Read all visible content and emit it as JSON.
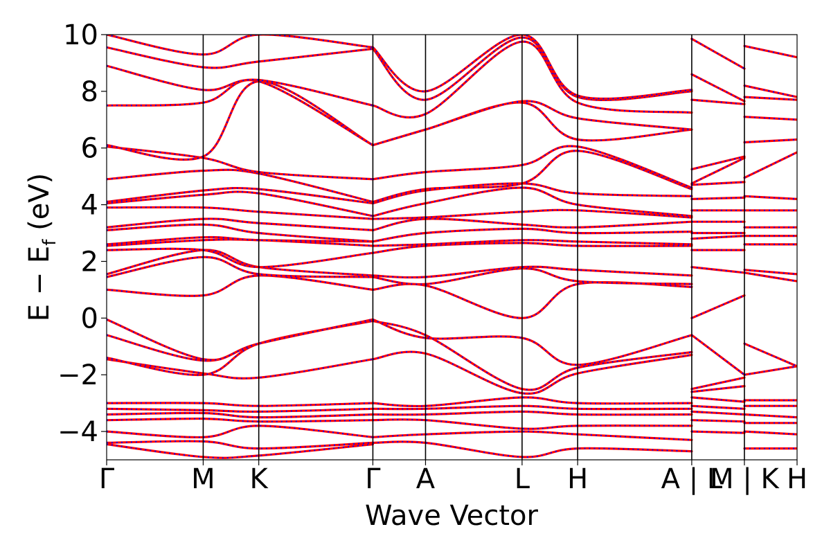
{
  "chart_data": {
    "type": "line",
    "title": "",
    "xlabel": "Wave Vector",
    "ylabel": {
      "main": "E − E",
      "sub": "f",
      "unit": " (eV)"
    },
    "ylim": [
      -5,
      10
    ],
    "yticks": [
      {
        "value": 10,
        "label": "10"
      },
      {
        "value": 8,
        "label": "8"
      },
      {
        "value": 6,
        "label": "6"
      },
      {
        "value": 4,
        "label": "4"
      },
      {
        "value": 2,
        "label": "2"
      },
      {
        "value": 0,
        "label": "0"
      },
      {
        "value": -2,
        "label": "−2"
      },
      {
        "value": -4,
        "label": "−4"
      }
    ],
    "xlim": [
      0,
      2.36
    ],
    "kpoints": [
      {
        "x": 0.0,
        "label": "Γ"
      },
      {
        "x": 0.33,
        "label": "M"
      },
      {
        "x": 0.52,
        "label": "K"
      },
      {
        "x": 0.91,
        "label": "Γ"
      },
      {
        "x": 1.09,
        "label": "A"
      },
      {
        "x": 1.42,
        "label": "L"
      },
      {
        "x": 1.61,
        "label": "H"
      },
      {
        "x": 2.0,
        "label": "A | L"
      },
      {
        "x": 2.18,
        "label": "M | K"
      },
      {
        "x": 2.36,
        "label": "H"
      }
    ],
    "grid": false,
    "legend": "none",
    "series_styles": [
      {
        "color": "#ff0000",
        "style": "solid"
      },
      {
        "color": "#0000ff",
        "style": "dotted"
      }
    ],
    "segments": [
      {
        "x": [
          0,
          0.33,
          0.52,
          0.91
        ],
        "bands": [
          [
            -4.45,
            -4.9,
            -4.85,
            -4.45
          ],
          [
            -4.4,
            -4.35,
            -4.6,
            -4.4
          ],
          [
            -4.0,
            -4.2,
            -3.8,
            -4.2
          ],
          [
            -3.6,
            -3.55,
            -3.65,
            -3.6
          ],
          [
            -3.4,
            -3.35,
            -3.5,
            -3.4
          ],
          [
            -3.2,
            -3.25,
            -3.3,
            -3.2
          ],
          [
            -3.0,
            -3.0,
            -3.1,
            -3.0
          ],
          [
            -1.45,
            -1.95,
            -2.1,
            -1.45
          ],
          [
            -1.4,
            -2.0,
            -0.9,
            -0.1
          ],
          [
            -0.6,
            -1.5,
            -0.9,
            -0.05
          ],
          [
            -0.05,
            -1.45,
            -0.9,
            -0.05
          ],
          [
            1.0,
            0.8,
            1.5,
            1.0
          ],
          [
            1.45,
            2.15,
            1.55,
            1.45
          ],
          [
            1.55,
            2.4,
            1.8,
            1.5
          ],
          [
            2.4,
            2.4,
            1.8,
            2.3
          ],
          [
            2.55,
            2.75,
            2.75,
            2.55
          ],
          [
            2.6,
            2.85,
            2.75,
            2.7
          ],
          [
            3.1,
            3.3,
            3.0,
            2.7
          ],
          [
            3.2,
            3.5,
            3.35,
            3.1
          ],
          [
            3.9,
            3.9,
            3.75,
            3.5
          ],
          [
            4.05,
            4.35,
            4.4,
            3.6
          ],
          [
            4.1,
            4.5,
            4.55,
            4.05
          ],
          [
            4.9,
            5.2,
            5.1,
            4.1
          ],
          [
            6.05,
            5.65,
            5.15,
            4.9
          ],
          [
            6.1,
            5.7,
            8.35,
            6.1
          ],
          [
            7.5,
            7.6,
            8.35,
            6.1
          ],
          [
            8.9,
            8.05,
            8.4,
            7.5
          ],
          [
            9.55,
            8.85,
            9.05,
            9.5
          ],
          [
            10.0,
            9.3,
            10.0,
            9.55
          ]
        ]
      },
      {
        "x": [
          0.91,
          1.09,
          1.42,
          1.61,
          2.0
        ],
        "bands": [
          [
            -4.4,
            -4.4,
            -4.9,
            -4.6,
            -4.7
          ],
          [
            -4.2,
            -4.1,
            -4.0,
            -4.1,
            -4.3
          ],
          [
            -3.6,
            -3.6,
            -3.9,
            -3.8,
            -3.8
          ],
          [
            -3.4,
            -3.4,
            -3.3,
            -3.4,
            -3.4
          ],
          [
            -3.2,
            -3.2,
            -3.1,
            -3.2,
            -3.2
          ],
          [
            -3.0,
            -3.1,
            -2.8,
            -3.0,
            -3.0
          ],
          [
            -1.45,
            -1.25,
            -2.65,
            -1.95,
            -1.3
          ],
          [
            -0.1,
            -0.6,
            -2.5,
            -1.75,
            -1.2
          ],
          [
            -0.05,
            -0.7,
            -0.7,
            -1.65,
            -0.6
          ],
          [
            1.0,
            1.15,
            0.0,
            1.2,
            1.1
          ],
          [
            1.45,
            1.2,
            1.75,
            1.3,
            1.2
          ],
          [
            1.5,
            1.45,
            1.8,
            1.7,
            1.5
          ],
          [
            2.3,
            2.55,
            2.65,
            2.55,
            2.55
          ],
          [
            2.55,
            2.6,
            2.75,
            2.7,
            2.6
          ],
          [
            2.7,
            3.0,
            3.15,
            3.0,
            3.05
          ],
          [
            3.1,
            3.5,
            3.3,
            3.2,
            3.4
          ],
          [
            3.5,
            3.55,
            3.75,
            3.8,
            3.55
          ],
          [
            3.6,
            4.05,
            4.6,
            4.0,
            3.6
          ],
          [
            4.05,
            4.5,
            4.75,
            4.4,
            4.3
          ],
          [
            4.1,
            4.55,
            4.75,
            5.9,
            4.55
          ],
          [
            4.9,
            5.15,
            5.4,
            6.05,
            4.6
          ],
          [
            6.1,
            6.65,
            7.6,
            6.3,
            6.65
          ],
          [
            6.1,
            6.65,
            7.65,
            7.05,
            6.65
          ],
          [
            7.5,
            7.2,
            9.75,
            7.6,
            7.25
          ],
          [
            9.5,
            7.7,
            9.9,
            7.8,
            8.0
          ],
          [
            9.55,
            8.0,
            10.0,
            7.85,
            8.05
          ]
        ]
      },
      {
        "x": [
          2.0,
          2.18
        ],
        "bands": [
          [
            -4.0,
            -4.05
          ],
          [
            -3.6,
            -3.65
          ],
          [
            -3.3,
            -3.4
          ],
          [
            -3.1,
            -3.2
          ],
          [
            -2.8,
            -2.95
          ],
          [
            -2.6,
            -2.4
          ],
          [
            -2.5,
            -2.1
          ],
          [
            -0.6,
            -2.0
          ],
          [
            0.0,
            0.8
          ],
          [
            1.8,
            1.6
          ],
          [
            2.4,
            2.4
          ],
          [
            2.8,
            2.9
          ],
          [
            3.0,
            3.0
          ],
          [
            3.4,
            3.4
          ],
          [
            3.8,
            3.8
          ],
          [
            4.2,
            4.25
          ],
          [
            4.7,
            4.8
          ],
          [
            4.75,
            5.65
          ],
          [
            5.25,
            5.7
          ],
          [
            7.7,
            7.55
          ],
          [
            8.6,
            7.65
          ],
          [
            9.85,
            8.8
          ]
        ]
      },
      {
        "x": [
          2.18,
          2.36
        ],
        "bands": [
          [
            -4.6,
            -4.6
          ],
          [
            -4.0,
            -4.1
          ],
          [
            -3.7,
            -3.7
          ],
          [
            -3.4,
            -3.5
          ],
          [
            -3.1,
            -3.1
          ],
          [
            -2.9,
            -2.9
          ],
          [
            -2.0,
            -1.7
          ],
          [
            -0.9,
            -1.7
          ],
          [
            1.6,
            1.3
          ],
          [
            1.7,
            1.55
          ],
          [
            2.6,
            2.6
          ],
          [
            2.9,
            2.9
          ],
          [
            3.2,
            3.2
          ],
          [
            3.8,
            3.8
          ],
          [
            4.3,
            4.2
          ],
          [
            4.95,
            5.85
          ],
          [
            6.2,
            6.3
          ],
          [
            7.1,
            7.0
          ],
          [
            7.8,
            7.7
          ],
          [
            8.2,
            7.8
          ],
          [
            9.6,
            9.2
          ]
        ]
      }
    ]
  }
}
